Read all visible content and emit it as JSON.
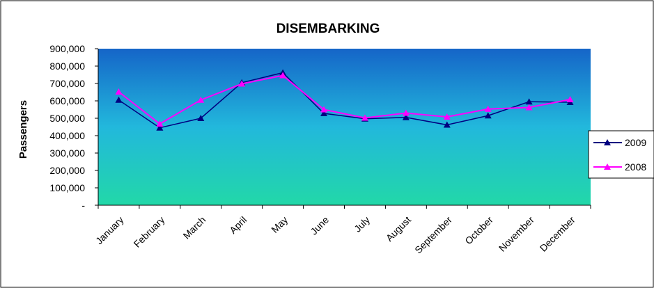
{
  "chart_data": {
    "type": "line",
    "title": "DISEMBARKING",
    "xlabel": "",
    "ylabel": "Passengers",
    "categories": [
      "January",
      "February",
      "March",
      "April",
      "May",
      "June",
      "July",
      "August",
      "September",
      "October",
      "November",
      "December"
    ],
    "y_ticks": [
      "-",
      "100,000",
      "200,000",
      "300,000",
      "400,000",
      "500,000",
      "600,000",
      "700,000",
      "800,000",
      "900,000"
    ],
    "ylim": [
      0,
      900000
    ],
    "legend_position": "right",
    "series": [
      {
        "name": "2009",
        "color": "#000080",
        "marker": "triangle",
        "values": [
          605000,
          445000,
          500000,
          705000,
          762000,
          528000,
          497000,
          505000,
          462000,
          515000,
          595000,
          592000
        ]
      },
      {
        "name": "2008",
        "color": "#ff00ff",
        "marker": "triangle",
        "values": [
          652000,
          468000,
          605000,
          698000,
          746000,
          550000,
          502000,
          530000,
          508000,
          553000,
          562000,
          608000
        ]
      }
    ],
    "plot_background": {
      "top": "#1565c8",
      "bottom": "#22d8a8"
    }
  }
}
